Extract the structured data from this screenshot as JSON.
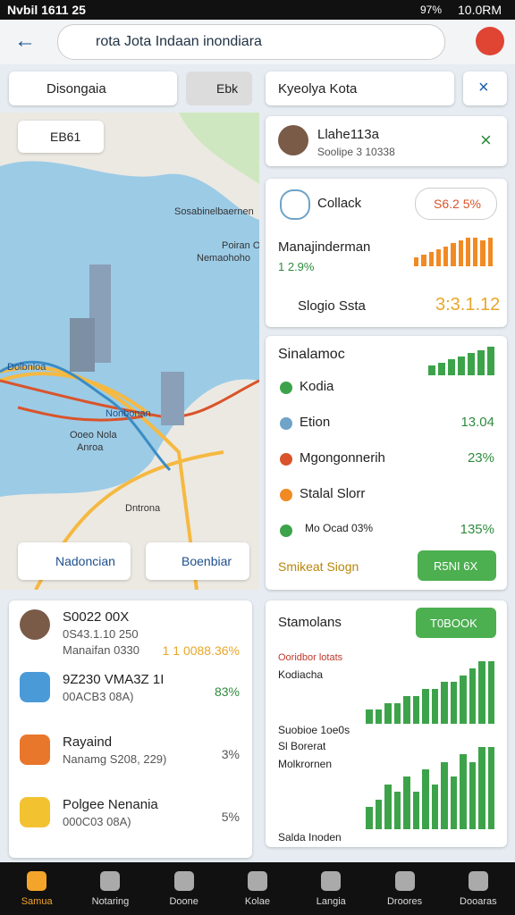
{
  "status_bar": {
    "left": "Nvbil 1611 25",
    "battery": "97%",
    "time": "10.0RM"
  },
  "browser": {
    "url": "rota Jota Indaan inondiara"
  },
  "map_panel": {
    "dropdown": "Disongaia",
    "button": "Ebk",
    "chip": "EB61",
    "labels": [
      "Sosabinelbaernen",
      "Poiran O",
      "Nemaohoho",
      "Ooeo Nola",
      "Anroa",
      "Nonbonan",
      "Dolbnloa",
      "Dntrona"
    ],
    "actions": [
      "Nadoncian",
      "Boenbiar"
    ]
  },
  "search": {
    "text": "Kyeolya Kota"
  },
  "profile": {
    "name": "Llahe113a",
    "subtitle": "Soolipe 3 10338"
  },
  "stats_card": {
    "label": "Collack",
    "badge": "S6.2 5%",
    "metric": "Manajinderman",
    "metric_value": "1 2.9%",
    "bars": [
      3,
      4,
      5,
      6,
      7,
      8,
      9,
      10,
      10,
      9,
      10
    ],
    "footer_label": "Slogio Ssta",
    "footer_value": "3:3.1.12"
  },
  "list_card": {
    "title": "Sinalamoc",
    "bars": [
      3,
      4,
      5,
      6,
      7,
      8,
      9
    ],
    "items": [
      {
        "label": "Kodia",
        "value": ""
      },
      {
        "label": "Etion",
        "value": "13.04"
      },
      {
        "label": "Mgongonnerih",
        "value": "23%"
      },
      {
        "label": "Stalal Slorr",
        "value": ""
      },
      {
        "label": "Mo Ocad 03%",
        "value": "135%"
      }
    ],
    "footer": "Smikeat Siogn",
    "button": "R5NI 6X"
  },
  "people_card": {
    "items": [
      {
        "title": "S0022 00X",
        "sub": "0S43.1.10 250",
        "sub2": "Manaifan 0330",
        "value": "1 1 0088.36%"
      },
      {
        "title": "9Z230 VMA3Z 1I",
        "sub": "00ACB3 08A)",
        "value": "83%"
      },
      {
        "title": "Rayaind",
        "sub": "Nanamg S208, 229)",
        "value": "3%"
      },
      {
        "title": "Polgee Nenania",
        "sub": "000C03 08A)",
        "value": "5%"
      }
    ]
  },
  "charts_card": {
    "title": "Stamolans",
    "button": "T0BOOK",
    "caption": "Ooridbor lotats",
    "label1": "Kodiacha",
    "bars1": [
      2,
      2,
      3,
      3,
      4,
      4,
      5,
      5,
      6,
      6,
      7,
      8,
      9,
      9
    ],
    "label2": "Suobioe 1oe0s",
    "label3": "Sl Borerat",
    "label4": "Molkrornen",
    "bars2": [
      3,
      4,
      6,
      5,
      7,
      5,
      8,
      6,
      9,
      7,
      10,
      9,
      11,
      11
    ],
    "footer": "Salda Inoden"
  },
  "nav": [
    "Samua",
    "Notaring",
    "Doone",
    "Kolae",
    "Langia",
    "Droores",
    "Dooaras"
  ]
}
